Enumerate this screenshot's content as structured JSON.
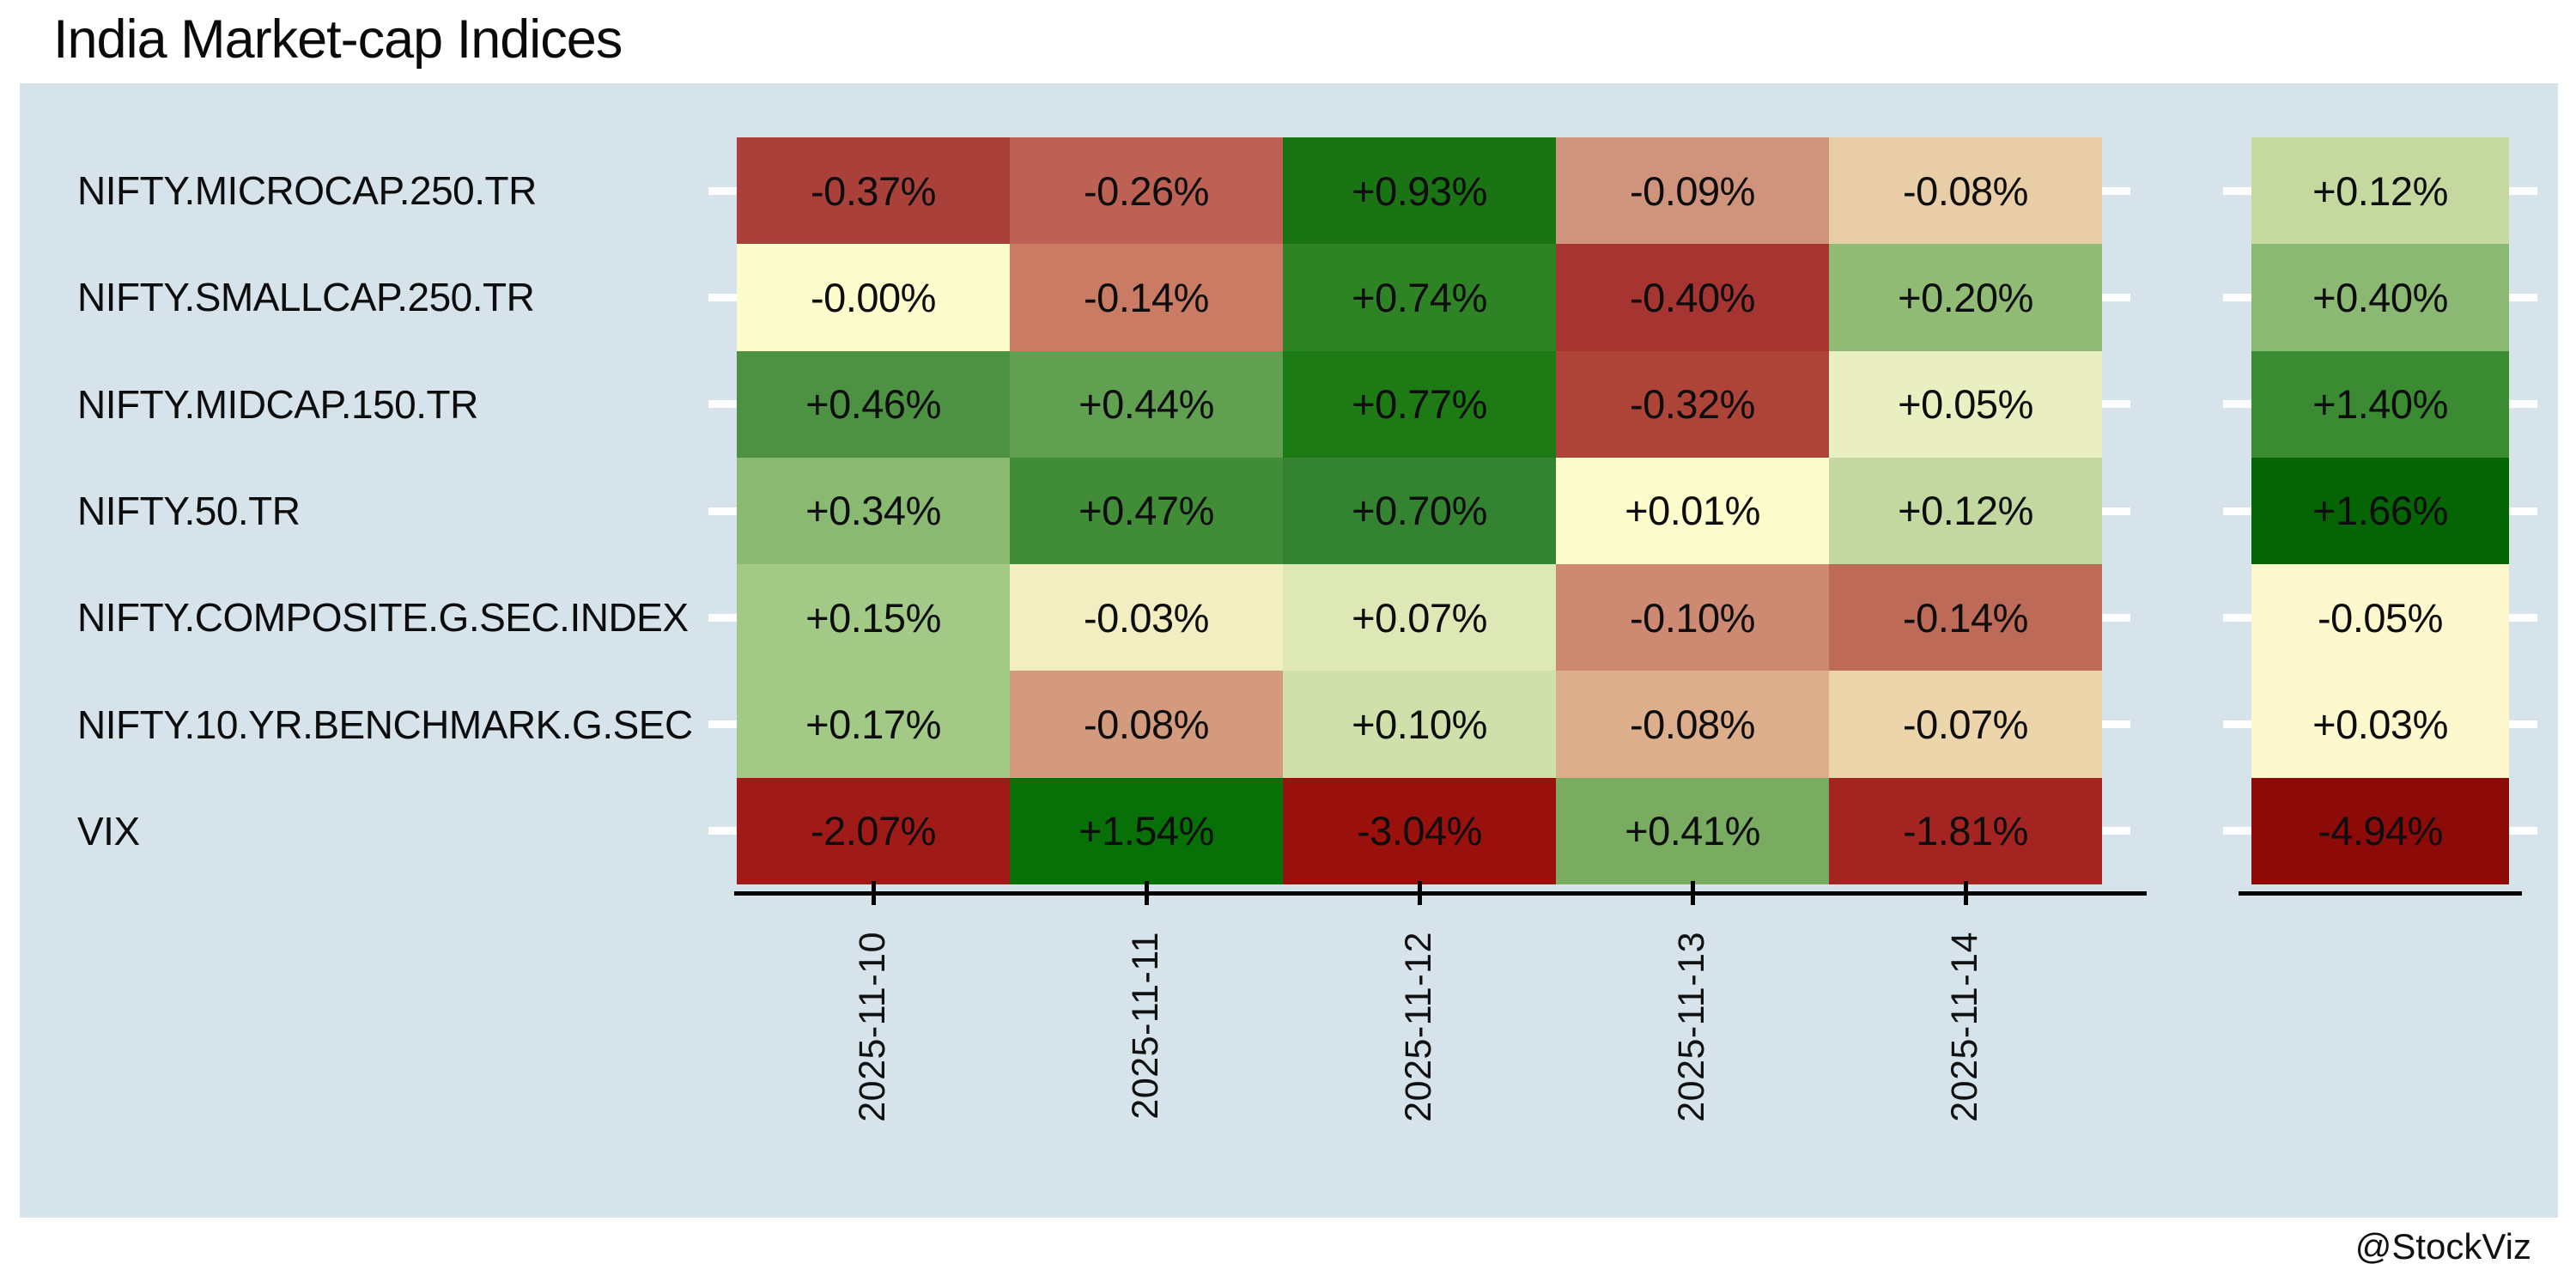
{
  "title": "India Market-cap Indices",
  "attribution": "@StockViz",
  "colors": {
    "page_bg": "#ffffff",
    "panel_bg": "#d6e3ea",
    "text": "#0d0d0d",
    "axis_line": "#000000",
    "tick_mark_white": "#ffffff"
  },
  "chart_data": {
    "type": "heatmap",
    "title": "India Market-cap Indices",
    "value_format": "percent_daily_change",
    "legend_position": "none",
    "grid": "off",
    "columns": [
      "2025-11-10",
      "2025-11-11",
      "2025-11-12",
      "2025-11-13",
      "2025-11-14"
    ],
    "rows": [
      {
        "label": "NIFTY.MICROCAP.250.TR",
        "values": [
          -0.37,
          -0.26,
          0.93,
          -0.09,
          -0.08
        ],
        "display": [
          "-0.37%",
          "-0.26%",
          "+0.93%",
          "-0.09%",
          "-0.08%"
        ],
        "cell_colors": [
          "#a9413a",
          "#bd6154",
          "#1a7413",
          "#d0947d",
          "#e8cda6"
        ],
        "summary_value": 0.12,
        "summary_display": "+0.12%",
        "summary_color": "#c4d89f"
      },
      {
        "label": "NIFTY.SMALLCAP.250.TR",
        "values": [
          -0.0,
          -0.14,
          0.74,
          -0.4,
          0.2
        ],
        "display": [
          "-0.00%",
          "-0.14%",
          "+0.74%",
          "-0.40%",
          "+0.20%"
        ],
        "cell_colors": [
          "#fdfccd",
          "#ca7b63",
          "#2e8424",
          "#a63430",
          "#90bb74"
        ],
        "summary_value": 0.4,
        "summary_display": "+0.40%",
        "summary_color": "#8bb873"
      },
      {
        "label": "NIFTY.MIDCAP.150.TR",
        "values": [
          0.46,
          0.44,
          0.77,
          -0.32,
          0.05
        ],
        "display": [
          "+0.46%",
          "+0.44%",
          "+0.77%",
          "-0.32%",
          "+0.05%"
        ],
        "cell_colors": [
          "#4d9243",
          "#61a050",
          "#1d7a14",
          "#ae4338",
          "#e9efc1"
        ],
        "summary_value": 1.4,
        "summary_display": "+1.40%",
        "summary_color": "#3a8b31"
      },
      {
        "label": "NIFTY.50.TR",
        "values": [
          0.34,
          0.47,
          0.7,
          0.01,
          0.12
        ],
        "display": [
          "+0.34%",
          "+0.47%",
          "+0.70%",
          "+0.01%",
          "+0.12%"
        ],
        "cell_colors": [
          "#8aba71",
          "#418d37",
          "#348330",
          "#fcfccd",
          "#c2d8a0"
        ],
        "summary_value": 1.66,
        "summary_display": "+1.66%",
        "summary_color": "#056505"
      },
      {
        "label": "NIFTY.COMPOSITE.G.SEC.INDEX",
        "values": [
          0.15,
          -0.03,
          0.07,
          -0.1,
          -0.14
        ],
        "display": [
          "+0.15%",
          "-0.03%",
          "+0.07%",
          "-0.10%",
          "-0.14%"
        ],
        "cell_colors": [
          "#a3c987",
          "#f2eec2",
          "#dde8b6",
          "#cd8972",
          "#bd6a58"
        ],
        "summary_value": -0.05,
        "summary_display": "-0.05%",
        "summary_color": "#fdf8ce"
      },
      {
        "label": "NIFTY.10.YR.BENCHMARK.G.SEC",
        "values": [
          0.17,
          -0.08,
          0.1,
          -0.08,
          -0.07
        ],
        "display": [
          "+0.17%",
          "-0.08%",
          "+0.10%",
          "-0.08%",
          "-0.07%"
        ],
        "cell_colors": [
          "#a2c985",
          "#d49a7e",
          "#cfe0ab",
          "#dcae8b",
          "#ecd5ab"
        ],
        "summary_value": 0.03,
        "summary_display": "+0.03%",
        "summary_color": "#fdf8ce"
      },
      {
        "label": "VIX",
        "values": [
          -2.07,
          1.54,
          -3.04,
          0.41,
          -1.81
        ],
        "display": [
          "-2.07%",
          "+1.54%",
          "-3.04%",
          "+0.41%",
          "-1.81%"
        ],
        "cell_colors": [
          "#a01b18",
          "#077007",
          "#9a100d",
          "#79ab60",
          "#a32421"
        ],
        "summary_value": -4.94,
        "summary_display": "-4.94%",
        "summary_color": "#8c0b09"
      }
    ]
  }
}
